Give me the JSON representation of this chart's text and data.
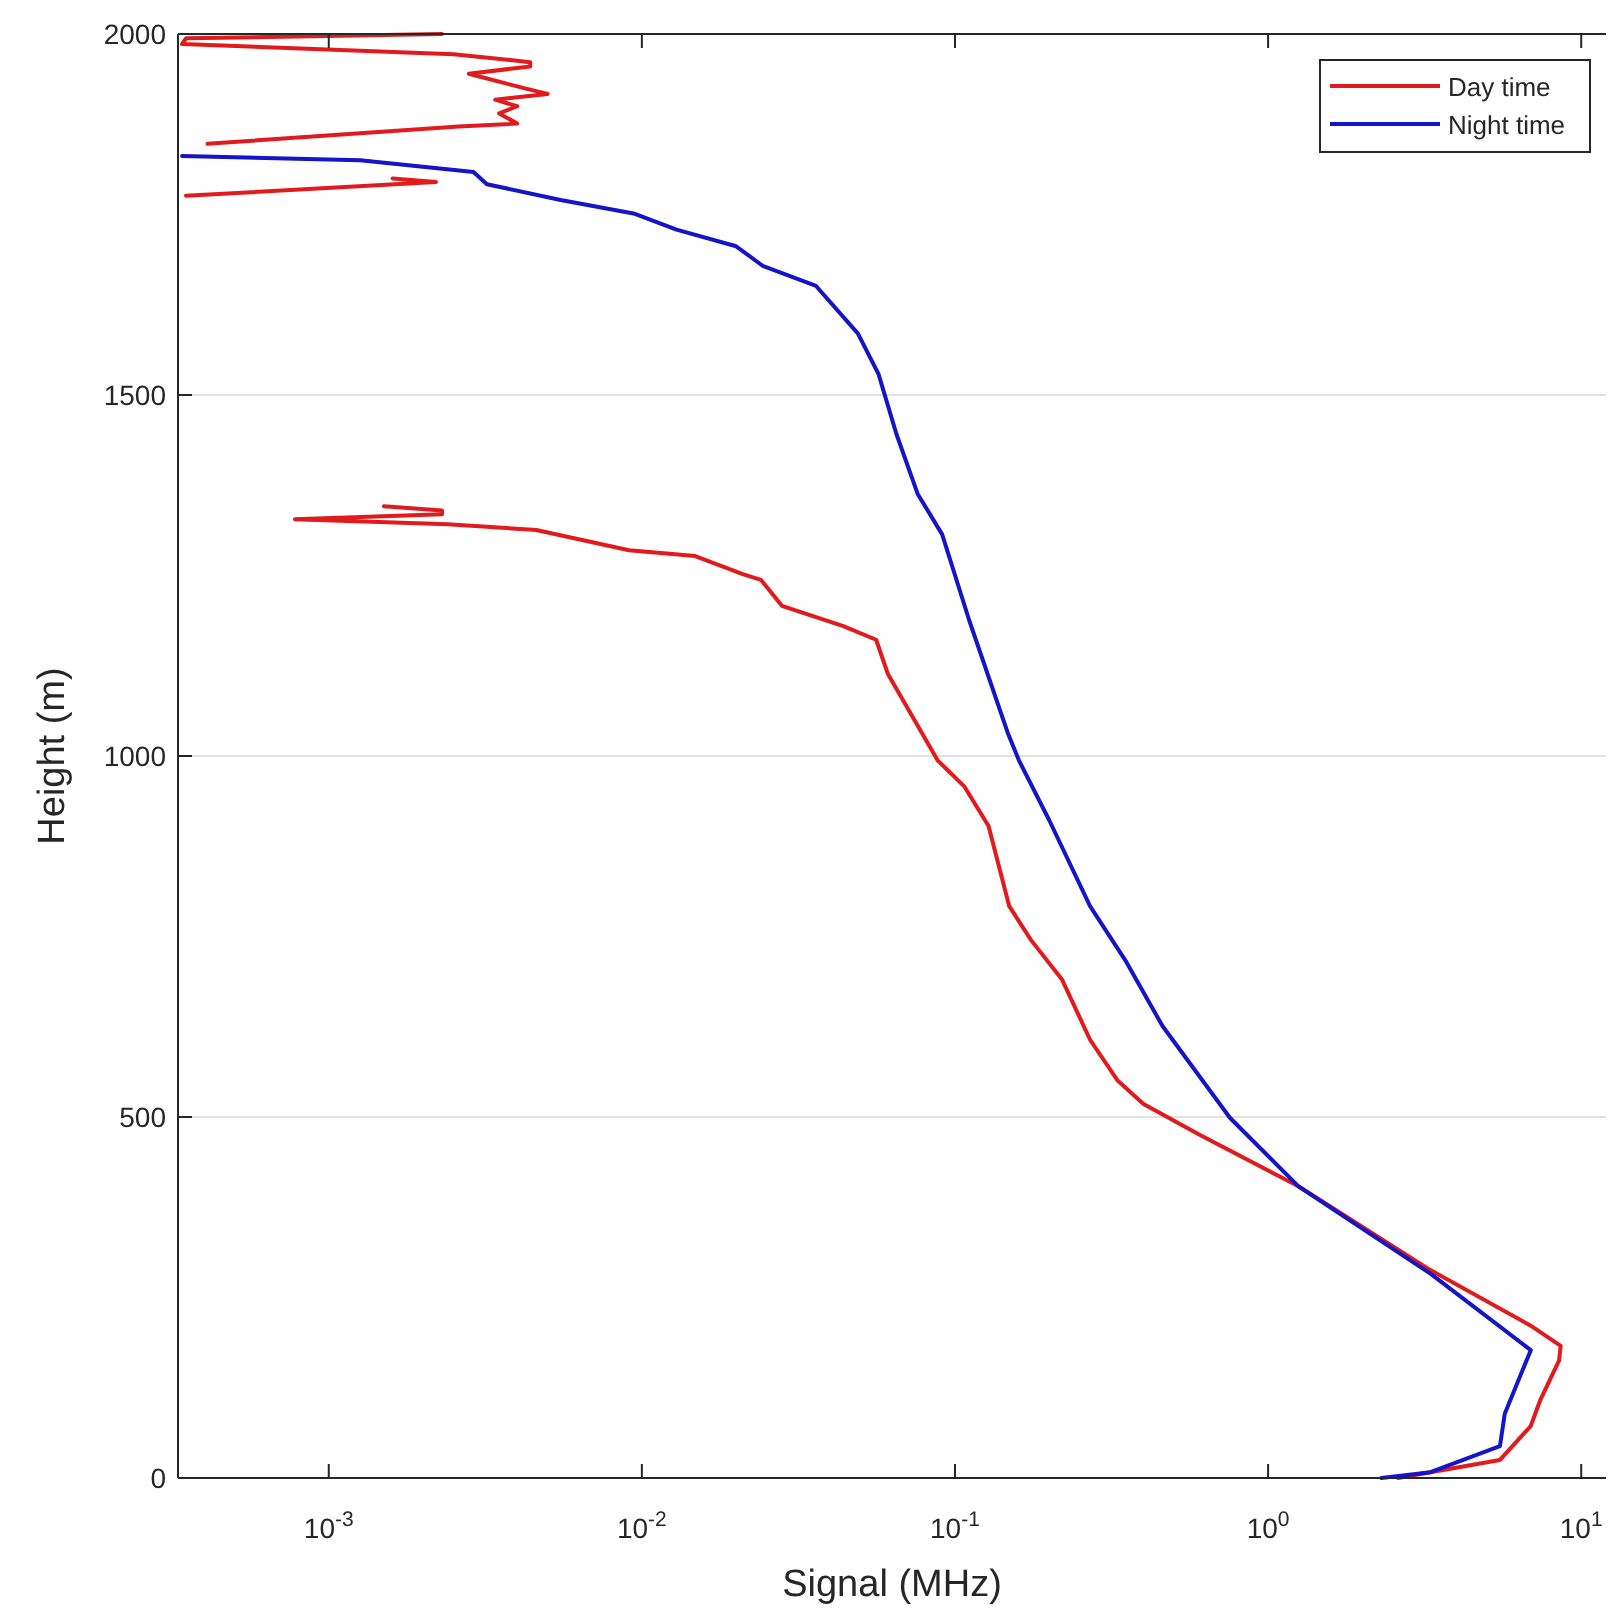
{
  "chart_data": {
    "type": "line",
    "xlabel": "Signal (MHz)",
    "ylabel": "Height (m)",
    "log": "x",
    "grid": "y",
    "legend": "top right",
    "line_style": "solid",
    "marker": "none",
    "xlim": [
      0.00033,
      12
    ],
    "xticks": [
      {
        "value": 0.001,
        "label": "10$^{-3}$"
      },
      {
        "value": 0.01,
        "label": "10$^{-2}$"
      },
      {
        "value": 0.1,
        "label": "10$^{-1}$"
      },
      {
        "value": 1,
        "label": "10$^{0}$"
      },
      {
        "value": 10,
        "label": "10$^{1}$"
      }
    ],
    "ylim": [
      0,
      2000
    ],
    "yticks": [
      0,
      500,
      1000,
      1500,
      2000
    ],
    "series": [
      {
        "name": "Day time",
        "color": "#e31a1c",
        "x": [
          2.6,
          5.5,
          6.9,
          7.4,
          8.5,
          8.6,
          6.9,
          3.3,
          1.25,
          0.6,
          0.4,
          0.33,
          0.27,
          0.22,
          0.175,
          0.149,
          0.128,
          0.107,
          0.088,
          0.061,
          0.056,
          0.044,
          0.028,
          0.024,
          0.021,
          0.0148,
          0.0091,
          0.0046,
          0.0024,
          0.00078,
          0.0023,
          0.0023,
          0.0015,
          null,
          0.00035,
          0.0022,
          0.0016,
          null,
          0.00041,
          0.0026,
          0.004,
          0.0035,
          0.004,
          0.0034,
          0.005,
          0.0042,
          0.0028,
          0.0044,
          0.0044,
          0.0025,
          0.00034,
          0.00035,
          0.0023
        ],
        "values": [
          0,
          25,
          72,
          108,
          163,
          183,
          211,
          288,
          404,
          476,
          518,
          551,
          607,
          690,
          745,
          792,
          903,
          958,
          994,
          1114,
          1161,
          1180,
          1208,
          1244,
          1252,
          1277,
          1285,
          1313,
          1321,
          1328,
          1335,
          1340,
          1346,
          null,
          1776,
          1795,
          1800,
          null,
          1848,
          1872,
          1876,
          1890,
          1900,
          1909,
          1917,
          1925,
          1945,
          1955,
          1961,
          1972,
          1986,
          1994,
          2000
        ]
      },
      {
        "name": "Night time",
        "color": "#1414c8",
        "x": [
          2.3,
          3.3,
          5.5,
          5.7,
          6.9,
          3.3,
          1.25,
          0.755,
          0.46,
          0.35,
          0.27,
          0.2,
          0.16,
          0.148,
          0.111,
          0.091,
          0.076,
          0.065,
          0.057,
          0.049,
          0.036,
          0.0243,
          0.02,
          0.0129,
          0.0095,
          0.0055,
          0.0032,
          0.0029,
          0.00126,
          0.00034
        ],
        "values": [
          0,
          8,
          44,
          89,
          177,
          283,
          404,
          499,
          626,
          717,
          792,
          911,
          994,
          1030,
          1188,
          1307,
          1363,
          1446,
          1529,
          1585,
          1651,
          1679,
          1706,
          1729,
          1751,
          1770,
          1792,
          1809,
          1825,
          1831
        ]
      }
    ]
  }
}
